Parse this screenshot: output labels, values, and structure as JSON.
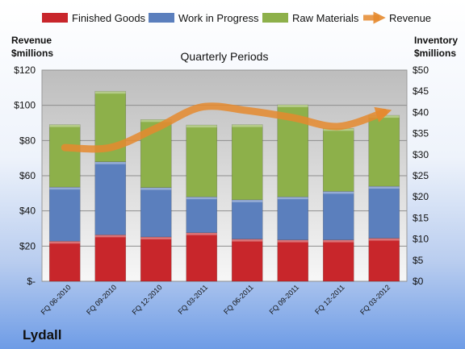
{
  "chart_data": {
    "type": "bar",
    "stacked": true,
    "subtitle": "Quarterly Periods",
    "company": "Lydall",
    "left_axis": {
      "title_line1": "Revenue",
      "title_line2": "$millions",
      "range": [
        0,
        120
      ],
      "ticks": [
        "$-",
        "$20",
        "$40",
        "$60",
        "$80",
        "$100",
        "$120"
      ],
      "tick_values": [
        0,
        20,
        40,
        60,
        80,
        100,
        120
      ]
    },
    "right_axis": {
      "title_line1": "Inventory",
      "title_line2": "$millions",
      "range": [
        0,
        50
      ],
      "ticks": [
        "$0",
        "$5",
        "$10",
        "$15",
        "$20",
        "$25",
        "$30",
        "$35",
        "$40",
        "$45",
        "$50"
      ],
      "tick_values": [
        0,
        5,
        10,
        15,
        20,
        25,
        30,
        35,
        40,
        45,
        50
      ]
    },
    "categories": [
      "FQ 06-2010",
      "FQ 09-2010",
      "FQ 12-2010",
      "FQ 03-2011",
      "FQ 06-2011",
      "FQ 09-2011",
      "FQ 12-2011",
      "FQ 03-2012"
    ],
    "series": [
      {
        "name": "Finished Goods",
        "axis": "right",
        "color": "#c8262b",
        "values": [
          9.5,
          11.0,
          10.5,
          11.5,
          10.0,
          9.8,
          9.8,
          10.2
        ]
      },
      {
        "name": "Work in Progress",
        "axis": "right",
        "color": "#5b7fbd",
        "values": [
          12.8,
          17.3,
          11.7,
          8.5,
          9.3,
          10.2,
          11.5,
          12.3
        ]
      },
      {
        "name": "Raw Materials",
        "axis": "right",
        "color": "#8db04a",
        "values": [
          14.8,
          16.7,
          16.1,
          17.0,
          17.8,
          21.8,
          14.9,
          16.8
        ]
      }
    ],
    "line_series": {
      "name": "Revenue",
      "axis": "left",
      "color": "#e58a2e",
      "values": [
        76,
        76,
        87,
        99,
        97,
        93,
        88,
        96
      ]
    },
    "legend_position": "top",
    "grid": true
  }
}
